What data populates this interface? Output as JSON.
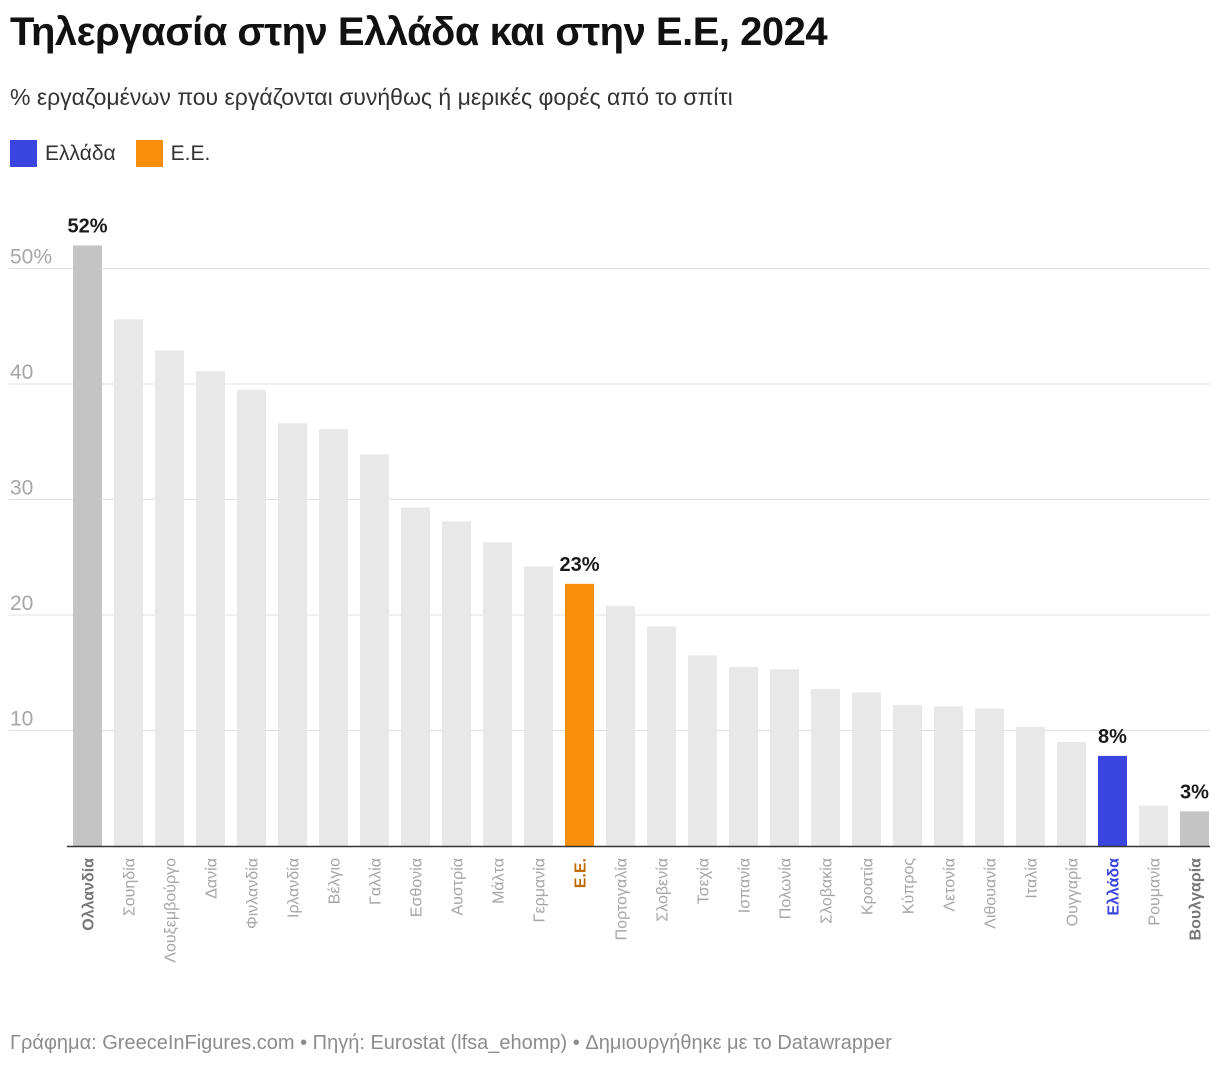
{
  "header": {
    "title": "Τηλεργασία στην Ελλάδα και στην Ε.Ε, 2024",
    "subtitle": "% εργαζομένων που εργάζονται συνήθως ή μερικές φορές από το σπίτι"
  },
  "legend": {
    "items": [
      {
        "label": "Ελλάδα",
        "color": "#3a45e0"
      },
      {
        "label": "Ε.Ε.",
        "color": "#f98e0a"
      }
    ]
  },
  "footer": {
    "text": "Γράφημα: GreeceInFigures.com • Πηγή: Eurostat (lfsa_ehomp) • Δημιουργήθηκε με το Datawrapper"
  },
  "colors": {
    "default_bar": "#e8e8e8",
    "extreme_bar": "#c4c4c4",
    "greece": "#3a45e0",
    "eu": "#f98e0a",
    "eu_label": "#c06a00",
    "axis_text": "#a6a6a6",
    "grid": "#e0e0e0"
  },
  "chart_data": {
    "type": "bar",
    "title": "Τηλεργασία στην Ελλάδα και στην Ε.Ε, 2024",
    "ylim": [
      0,
      53
    ],
    "yticks": [
      10,
      20,
      30,
      40,
      50
    ],
    "ytick_labels": [
      "10",
      "20",
      "30",
      "40",
      "50%"
    ],
    "grid": true,
    "categories": [
      "Ολλανδία",
      "Σουηδία",
      "Λουξεμβούργο",
      "Δανία",
      "Φινλανδία",
      "Ιρλανδία",
      "Βέλγιο",
      "Γαλλία",
      "Εσθονία",
      "Αυστρία",
      "Μάλτα",
      "Γερμανία",
      "Ε.Ε.",
      "Πορτογαλία",
      "Σλοβενία",
      "Τσεχία",
      "Ισπανία",
      "Πολωνία",
      "Σλοβακία",
      "Κροατία",
      "Κύπρος",
      "Λετονία",
      "Λιθουανία",
      "Ιταλία",
      "Ουγγαρία",
      "Ελλάδα",
      "Ρουμανία",
      "Βουλγαρία"
    ],
    "values": [
      52,
      45.6,
      42.9,
      41.1,
      39.5,
      36.6,
      36.1,
      33.9,
      29.3,
      28.1,
      26.3,
      24.2,
      22.7,
      20.8,
      19,
      16.5,
      15.5,
      15.3,
      13.6,
      13.3,
      12.2,
      12.1,
      11.9,
      10.3,
      9,
      7.8,
      3.5,
      3
    ],
    "highlights": {
      "Ολλανδία": "extreme",
      "Ε.Ε.": "eu",
      "Ελλάδα": "greece",
      "Βουλγαρία": "extreme"
    },
    "data_labels": [
      {
        "category": "Ολλανδία",
        "text": "52%"
      },
      {
        "category": "Ε.Ε.",
        "text": "23%"
      },
      {
        "category": "Ελλάδα",
        "text": "8%"
      },
      {
        "category": "Βουλγαρία",
        "text": "3%"
      }
    ]
  }
}
